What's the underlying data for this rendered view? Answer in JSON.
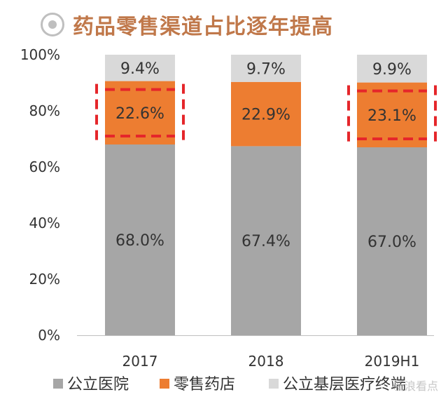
{
  "header": {
    "title": "药品零售渠道占比逐年提高",
    "icon": "target-circle-icon"
  },
  "chart_data": {
    "type": "bar",
    "stacked": true,
    "title": "药品零售渠道占比逐年提高",
    "categories": [
      "2017",
      "2018",
      "2019H1"
    ],
    "series": [
      {
        "name": "公立医院",
        "values": [
          68.0,
          67.4,
          67.0
        ],
        "labels": [
          "68.0%",
          "67.4%",
          "67.0%"
        ],
        "color": "#a6a6a6"
      },
      {
        "name": "零售药店",
        "values": [
          22.6,
          22.9,
          23.1
        ],
        "labels": [
          "22.6%",
          "22.9%",
          "23.1%"
        ],
        "color": "#ed7d31"
      },
      {
        "name": "公立基层医疗终端",
        "values": [
          9.4,
          9.7,
          9.9
        ],
        "labels": [
          "9.4%",
          "9.7%",
          "9.9%"
        ],
        "color": "#d9d9d9"
      }
    ],
    "yticks": [
      "0%",
      "20%",
      "40%",
      "60%",
      "80%",
      "100%"
    ],
    "ylim": [
      0,
      100
    ],
    "highlighted": [
      0,
      2
    ],
    "highlight_color": "#e5262a",
    "grid": false,
    "legend_position": "bottom"
  },
  "watermark": "新浪看点"
}
